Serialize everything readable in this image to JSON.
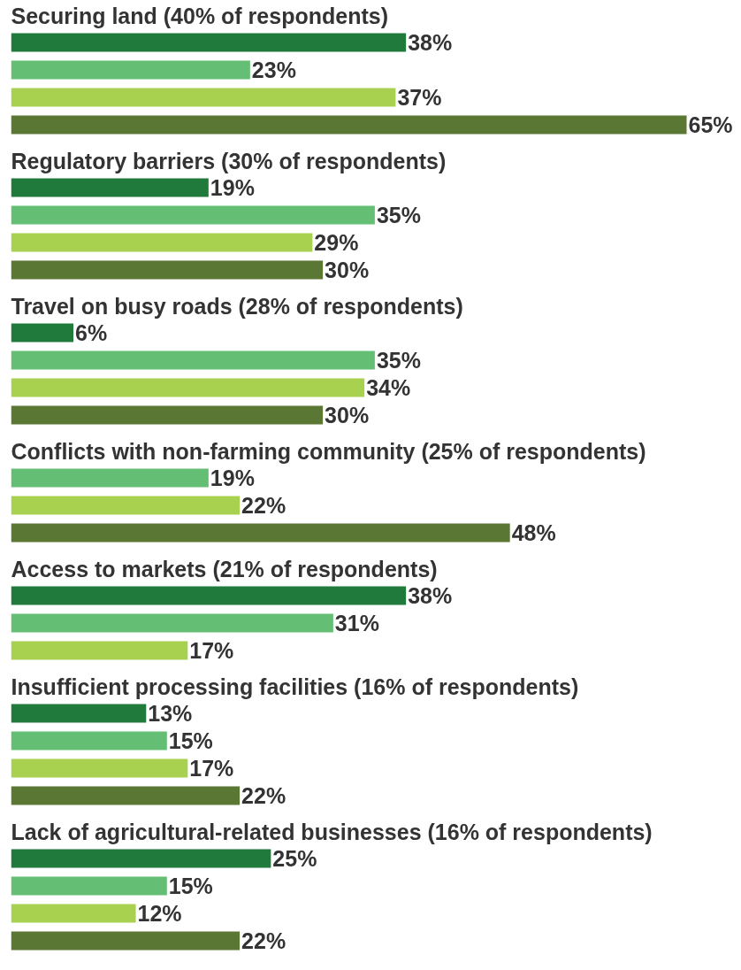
{
  "chart_data": [
    {
      "type": "bar",
      "orientation": "horizontal",
      "title": "Securing land (40% of respondents)",
      "categories": [
        null,
        null,
        null,
        null
      ],
      "values": [
        38,
        23,
        37,
        65
      ],
      "value_labels": [
        "38%",
        "23%",
        "37%",
        "65%"
      ],
      "colors": [
        "#1f7a3c",
        "#64bf74",
        "#a9d150",
        "#5b7734"
      ]
    },
    {
      "type": "bar",
      "orientation": "horizontal",
      "title": "Regulatory barriers (30% of respondents)",
      "categories": [
        null,
        null,
        null,
        null
      ],
      "values": [
        19,
        35,
        29,
        30
      ],
      "value_labels": [
        "19%",
        "35%",
        "29%",
        "30%"
      ],
      "colors": [
        "#1f7a3c",
        "#64bf74",
        "#a9d150",
        "#5b7734"
      ]
    },
    {
      "type": "bar",
      "orientation": "horizontal",
      "title": "Travel on busy roads (28% of respondents)",
      "categories": [
        null,
        null,
        null,
        null
      ],
      "values": [
        6,
        35,
        34,
        30
      ],
      "value_labels": [
        "6%",
        "35%",
        "34%",
        "30%"
      ],
      "colors": [
        "#1f7a3c",
        "#64bf74",
        "#a9d150",
        "#5b7734"
      ]
    },
    {
      "type": "bar",
      "orientation": "horizontal",
      "title": "Conflicts with non-farming community (25% of respondents)",
      "categories": [
        null,
        null,
        null
      ],
      "values": [
        19,
        22,
        48
      ],
      "value_labels": [
        "19%",
        "22%",
        "48%"
      ],
      "colors": [
        "#64bf74",
        "#a9d150",
        "#5b7734"
      ]
    },
    {
      "type": "bar",
      "orientation": "horizontal",
      "title": "Access to markets (21% of respondents)",
      "categories": [
        null,
        null,
        null
      ],
      "values": [
        38,
        31,
        17
      ],
      "value_labels": [
        "38%",
        "31%",
        "17%"
      ],
      "colors": [
        "#1f7a3c",
        "#64bf74",
        "#a9d150"
      ]
    },
    {
      "type": "bar",
      "orientation": "horizontal",
      "title": "Insufficient processing facilities (16% of respondents)",
      "categories": [
        null,
        null,
        null,
        null
      ],
      "values": [
        13,
        15,
        17,
        22
      ],
      "value_labels": [
        "13%",
        "15%",
        "17%",
        "22%"
      ],
      "colors": [
        "#1f7a3c",
        "#64bf74",
        "#a9d150",
        "#5b7734"
      ]
    },
    {
      "type": "bar",
      "orientation": "horizontal",
      "title": "Lack of agricultural-related businesses (16% of respondents)",
      "categories": [
        null,
        null,
        null,
        null
      ],
      "values": [
        25,
        15,
        12,
        22
      ],
      "value_labels": [
        "25%",
        "15%",
        "12%",
        "22%"
      ],
      "colors": [
        "#1f7a3c",
        "#64bf74",
        "#a9d150",
        "#5b7734"
      ]
    }
  ]
}
